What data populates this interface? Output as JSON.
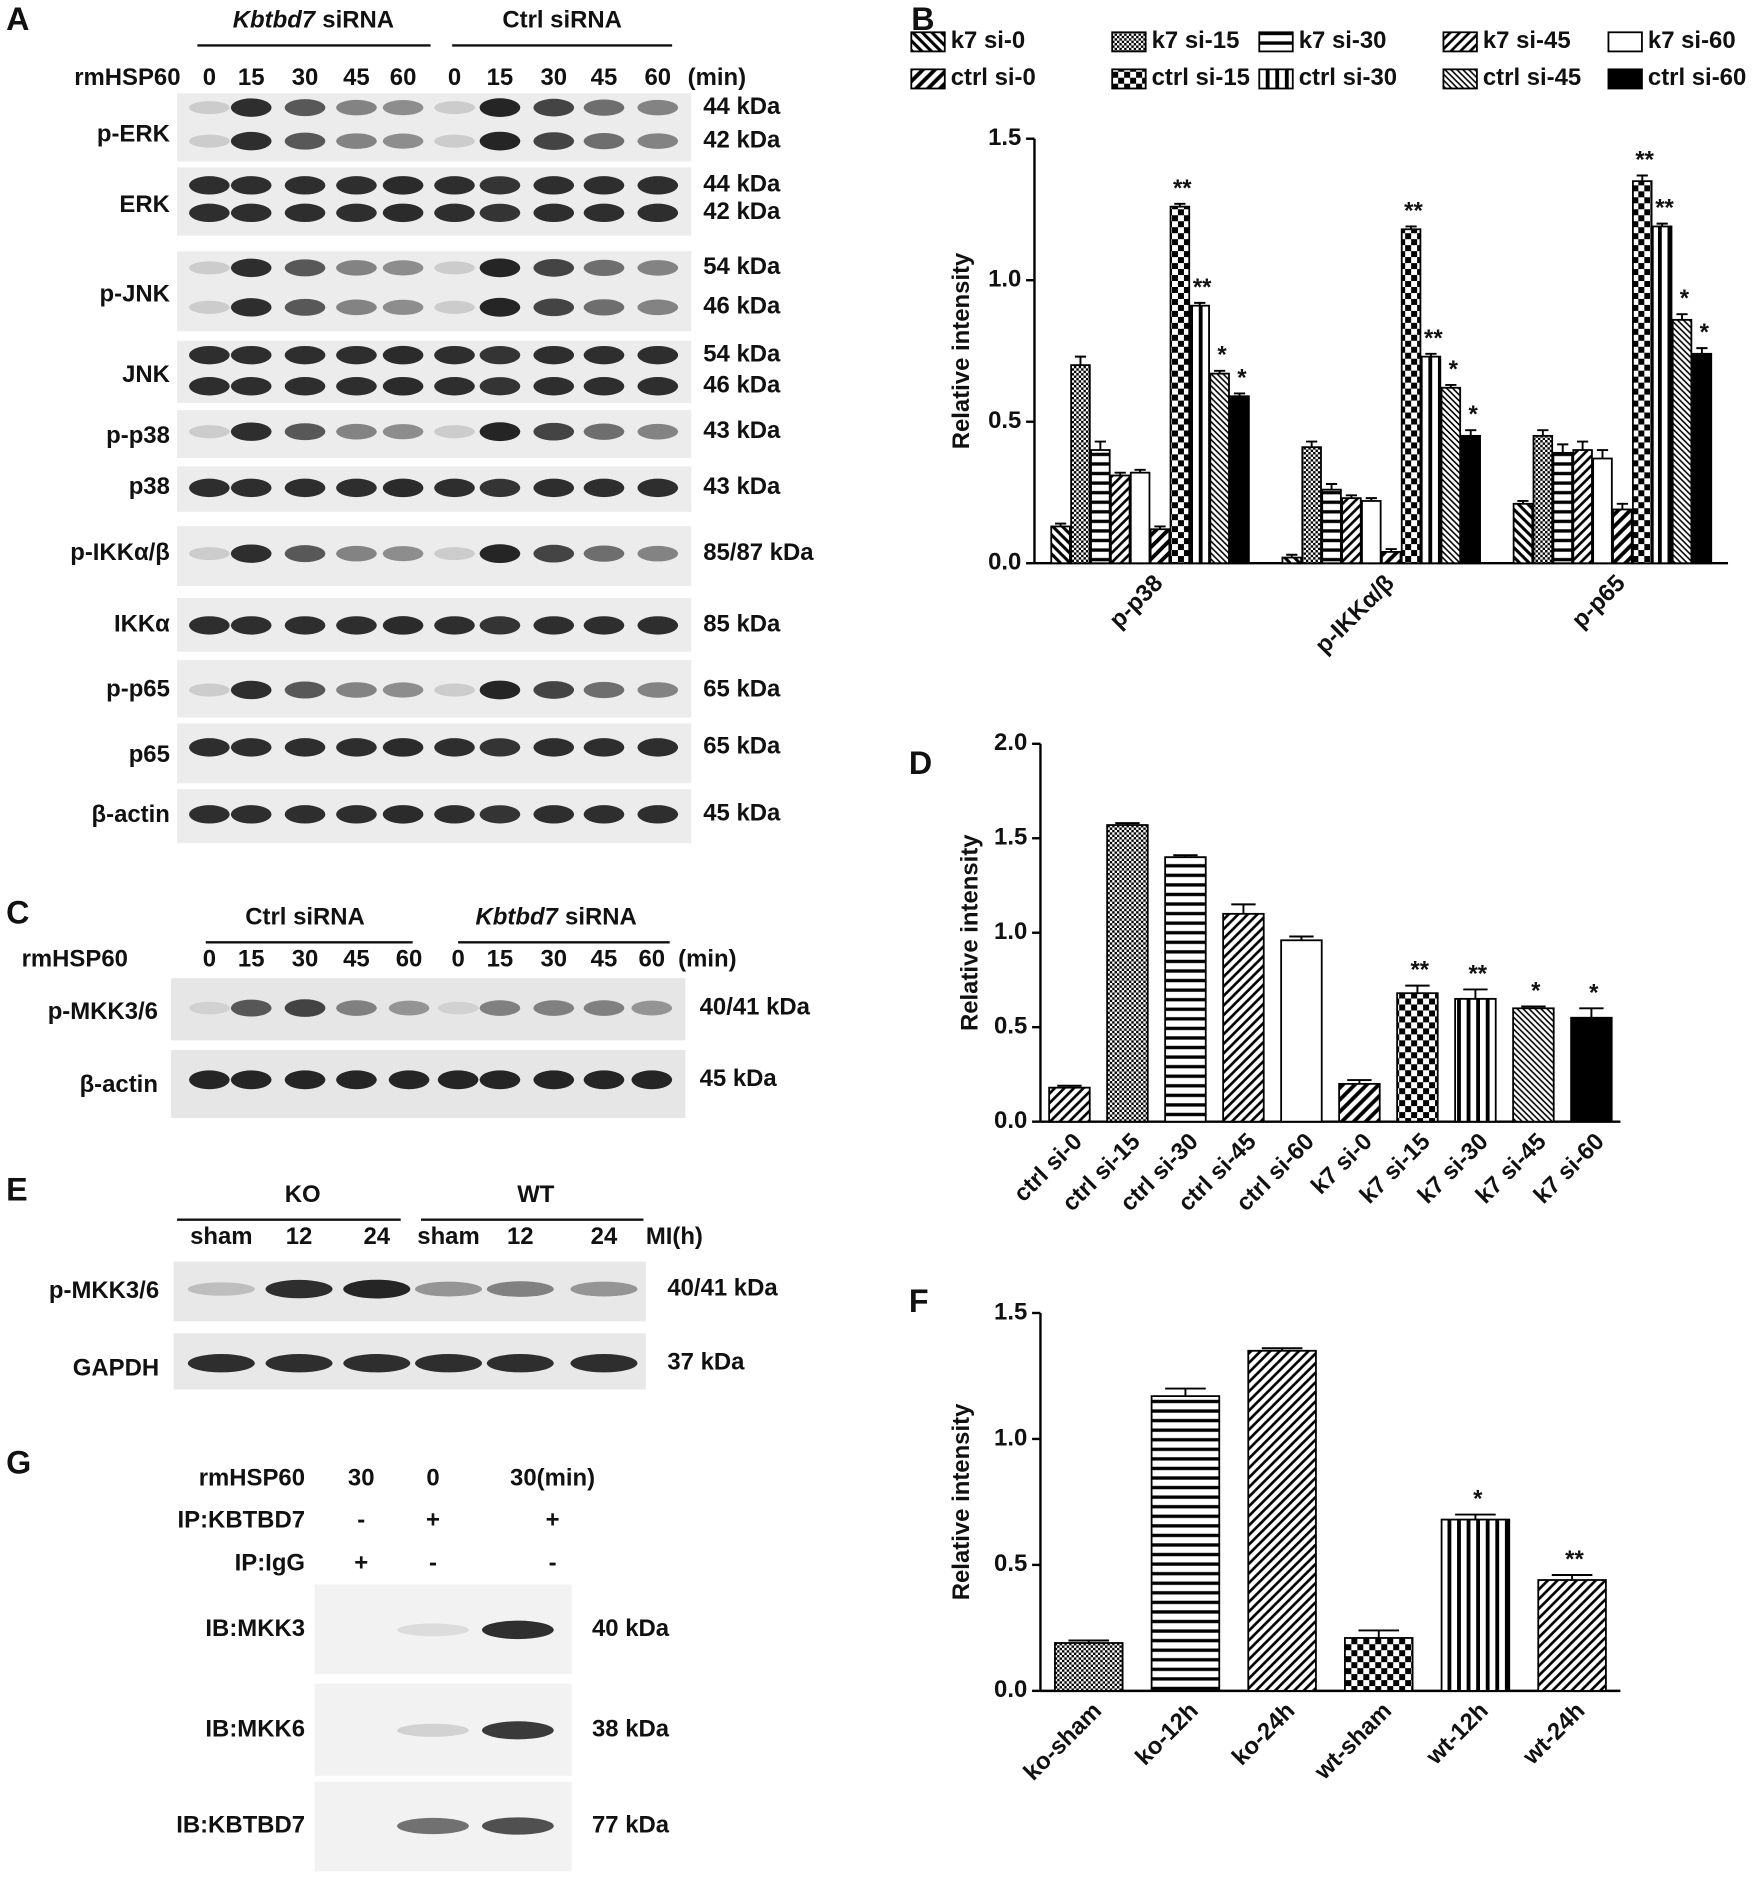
{
  "chart_data": [
    {
      "type": "bar",
      "panel": "B",
      "ylabel": "Relative intensity",
      "color": "#000000",
      "legend": "top",
      "categories": [
        "p-p38",
        "p-IKKα/β",
        "p-p65"
      ],
      "ylim": [
        0,
        1.5
      ],
      "yticks": [
        {
          "value": 0,
          "label": "0.0"
        },
        0.5,
        {
          "value": 1,
          "label": "1.0"
        },
        1.5
      ],
      "series": [
        {
          "name": "k7 si-0",
          "pattern": "back-diagonal",
          "values": [
            0.13,
            0.02,
            0.21
          ],
          "errors": [
            0.01,
            0.01,
            0.01
          ],
          "annotations": [
            null,
            null,
            null
          ]
        },
        {
          "name": "k7 si-15",
          "pattern": "dots-fine",
          "values": [
            0.7,
            0.41,
            0.45
          ],
          "errors": [
            0.03,
            0.02,
            0.02
          ],
          "annotations": [
            null,
            null,
            null
          ]
        },
        {
          "name": "k7 si-30",
          "pattern": "horizontal",
          "values": [
            0.4,
            0.26,
            0.39
          ],
          "errors": [
            0.03,
            0.02,
            0.03
          ],
          "annotations": [
            null,
            null,
            null
          ]
        },
        {
          "name": "k7 si-45",
          "pattern": "diagonal",
          "values": [
            0.31,
            0.23,
            0.4
          ],
          "errors": [
            0.01,
            0.01,
            0.03
          ],
          "annotations": [
            null,
            null,
            null
          ]
        },
        {
          "name": "k7 si-60",
          "pattern": "none",
          "values": [
            0.32,
            0.22,
            0.37
          ],
          "errors": [
            0.01,
            0.01,
            0.03
          ],
          "annotations": [
            null,
            null,
            null
          ]
        },
        {
          "name": "ctrl si-0",
          "pattern": "diagonal-thick",
          "values": [
            0.12,
            0.04,
            0.19
          ],
          "errors": [
            0.01,
            0.01,
            0.02
          ],
          "annotations": [
            null,
            null,
            null
          ]
        },
        {
          "name": "ctrl si-15",
          "pattern": "checker",
          "values": [
            1.26,
            1.18,
            1.35
          ],
          "errors": [
            0.01,
            0.01,
            0.02
          ],
          "annotations": [
            "**",
            "**",
            "**"
          ]
        },
        {
          "name": "ctrl si-30",
          "pattern": "vertical",
          "values": [
            0.91,
            0.73,
            1.19
          ],
          "errors": [
            0.01,
            0.01,
            0.01
          ],
          "annotations": [
            "**",
            "**",
            "**"
          ]
        },
        {
          "name": "ctrl si-45",
          "pattern": "back-diagonal-fine",
          "values": [
            0.67,
            0.62,
            0.86
          ],
          "errors": [
            0.01,
            0.01,
            0.02
          ],
          "annotations": [
            "*",
            "*",
            "*"
          ]
        },
        {
          "name": "ctrl si-60",
          "pattern": "solid",
          "values": [
            0.59,
            0.45,
            0.74
          ],
          "errors": [
            0.01,
            0.02,
            0.02
          ],
          "annotations": [
            "*",
            "*",
            "*"
          ]
        }
      ]
    },
    {
      "type": "bar",
      "panel": "D",
      "ylabel": "Relative intensity",
      "color": "#000000",
      "categories": [
        "ctrl si-0",
        "ctrl si-15",
        "ctrl si-30",
        "ctrl si-45",
        "ctrl si-60",
        "k7 si-0",
        "k7 si-15",
        "k7 si-30",
        "k7 si-45",
        "k7 si-60"
      ],
      "values": [
        0.18,
        1.57,
        1.4,
        1.1,
        0.96,
        0.2,
        0.68,
        0.65,
        0.6,
        0.55
      ],
      "errors": [
        0.01,
        0.01,
        0.01,
        0.05,
        0.02,
        0.02,
        0.04,
        0.05,
        0.01,
        0.05
      ],
      "patterns": [
        "diagonal",
        "dots-fine",
        "horizontal",
        "diagonal",
        "none",
        "diagonal-thick",
        "checker",
        "vertical",
        "back-diagonal-fine",
        "solid"
      ],
      "annotations": [
        null,
        null,
        null,
        null,
        null,
        null,
        "**",
        "**",
        "*",
        "*"
      ],
      "ylim": [
        0,
        2
      ],
      "yticks": [
        {
          "value": 0,
          "label": "0.0"
        },
        0.5,
        {
          "value": 1,
          "label": "1.0"
        },
        1.5,
        {
          "value": 2,
          "label": "2.0"
        }
      ]
    },
    {
      "type": "bar",
      "panel": "F",
      "ylabel": "Relative intensity",
      "color": "#000000",
      "categories": [
        "ko-sham",
        "ko-12h",
        "ko-24h",
        "wt-sham",
        "wt-12h",
        "wt-24h"
      ],
      "values": [
        0.19,
        1.17,
        1.35,
        0.21,
        0.68,
        0.44
      ],
      "errors": [
        0.01,
        0.03,
        0.01,
        0.03,
        0.02,
        0.02
      ],
      "patterns": [
        "dots-fine",
        "horizontal",
        "diagonal",
        "checker",
        "vertical",
        "diagonal"
      ],
      "annotations": [
        null,
        null,
        null,
        null,
        "*",
        "**"
      ],
      "ylim": [
        0,
        1.5
      ],
      "yticks": [
        {
          "value": 0,
          "label": "0.0"
        },
        0.5,
        {
          "value": 1,
          "label": "1.0"
        },
        1.5
      ]
    }
  ],
  "blots": [
    {
      "label": "A",
      "groups": [
        {
          "name": "Kbtbd7",
          "suffix": "siRNA"
        },
        {
          "name": "Ctrl siRNA"
        }
      ],
      "treatment": "rmHSP60",
      "lanes": [
        "0",
        "15",
        "30",
        "45",
        "60",
        "0",
        "15",
        "30",
        "45",
        "60"
      ],
      "unit": "(min)",
      "rows": [
        {
          "name": "p-ERK",
          "kda": [
            "44 kDa",
            "42 kDa"
          ]
        },
        {
          "name": "ERK",
          "kda": [
            "44 kDa",
            "42 kDa"
          ]
        },
        {
          "name": "p-JNK",
          "kda": [
            "54 kDa",
            "46 kDa"
          ]
        },
        {
          "name": "JNK",
          "kda": [
            "54 kDa",
            "46 kDa"
          ]
        },
        {
          "name": "p-p38",
          "kda": [
            "43 kDa"
          ]
        },
        {
          "name": "p38",
          "kda": [
            "43 kDa"
          ]
        },
        {
          "name": "p-IKKα/β",
          "kda": [
            "85/87 kDa"
          ]
        },
        {
          "name": "IKKα",
          "kda": [
            "85 kDa"
          ]
        },
        {
          "name": "p-p65",
          "kda": [
            "65 kDa"
          ]
        },
        {
          "name": "p65",
          "kda": [
            "65 kDa"
          ]
        },
        {
          "name": "β-actin",
          "kda": [
            "45 kDa"
          ]
        }
      ]
    },
    {
      "label": "C",
      "groups": [
        {
          "name": "Ctrl siRNA"
        },
        {
          "name": "Kbtbd7",
          "suffix": "siRNA"
        }
      ],
      "treatment": "rmHSP60",
      "lanes": [
        "0",
        "15",
        "30",
        "45",
        "60",
        "0",
        "15",
        "30",
        "45",
        "60"
      ],
      "unit": "(min)",
      "rows": [
        {
          "name": "p-MKK3/6",
          "kda": [
            "40/41 kDa"
          ]
        },
        {
          "name": "β-actin",
          "kda": [
            "45 kDa"
          ]
        }
      ]
    },
    {
      "label": "E",
      "groups": [
        {
          "name": "KO"
        },
        {
          "name": "WT"
        }
      ],
      "lanes": [
        "sham",
        "12",
        "24",
        "sham",
        "12",
        "24"
      ],
      "unit": "MI(h)",
      "rows": [
        {
          "name": "p-MKK3/6",
          "kda": [
            "40/41 kDa"
          ]
        },
        {
          "name": "GAPDH",
          "kda": [
            "37 kDa"
          ]
        }
      ]
    },
    {
      "label": "G",
      "conditions": [
        {
          "name": "rmHSP60",
          "lanes": [
            "30",
            "0",
            "30(min)"
          ]
        },
        {
          "name": "IP:KBTBD7",
          "lanes": [
            "-",
            "+",
            "+"
          ]
        },
        {
          "name": "IP:IgG",
          "lanes": [
            "+",
            "-",
            "-"
          ]
        }
      ],
      "rows": [
        {
          "name": "IB:MKK3",
          "kda": [
            "40 kDa"
          ]
        },
        {
          "name": "IB:MKK6",
          "kda": [
            "38 kDa"
          ]
        },
        {
          "name": "IB:KBTBD7",
          "kda": [
            "77 kDa"
          ]
        }
      ]
    }
  ]
}
